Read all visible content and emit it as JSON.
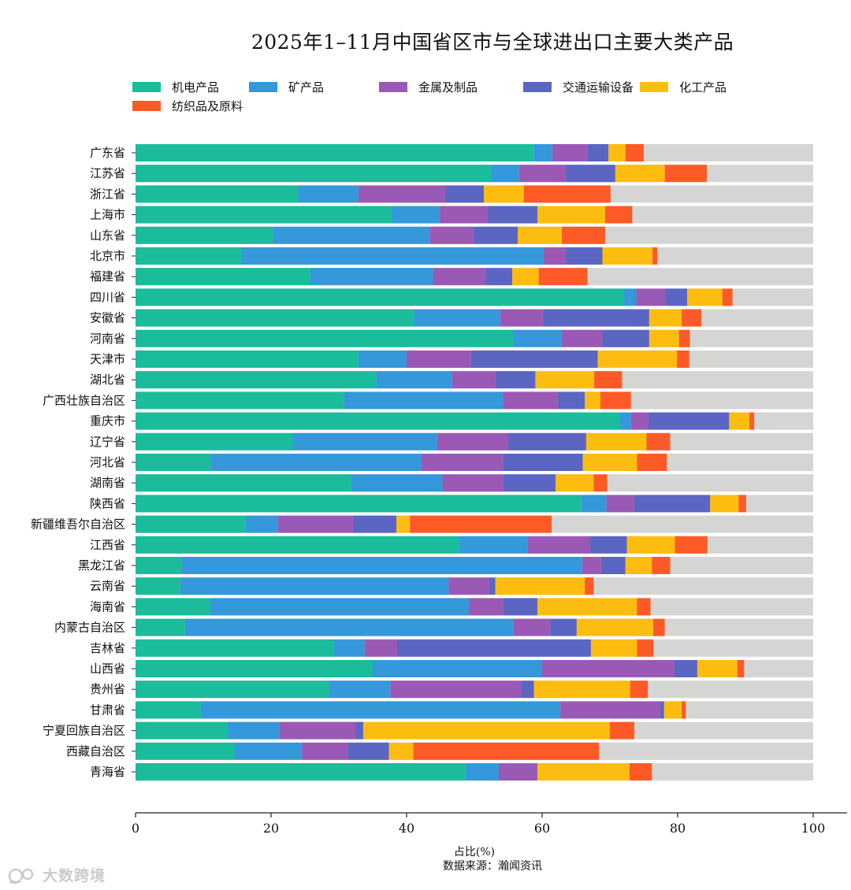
{
  "chart_data": {
    "type": "bar",
    "orientation": "horizontal",
    "stacked": true,
    "title": "2025年1–11月中国省区市与全球进出口主要大类产品",
    "xlabel": "占比(%)",
    "source": "数据来源：瀚闻资讯",
    "xlim": [
      0,
      100
    ],
    "xticks": [
      0,
      20,
      40,
      60,
      80,
      100
    ],
    "legend_position": "top",
    "other_color": "#d5d5d3",
    "categories": [
      "广东省",
      "江苏省",
      "浙江省",
      "上海市",
      "山东省",
      "北京市",
      "福建省",
      "四川省",
      "安徽省",
      "河南省",
      "天津市",
      "湖北省",
      "广西壮族自治区",
      "重庆市",
      "辽宁省",
      "河北省",
      "湖南省",
      "陕西省",
      "新疆维吾尔自治区",
      "江西省",
      "黑龙江省",
      "云南省",
      "海南省",
      "内蒙古自治区",
      "吉林省",
      "山西省",
      "贵州省",
      "甘肃省",
      "宁夏回族自治区",
      "西藏自治区",
      "青海省"
    ],
    "series": [
      {
        "name": "机电产品",
        "color": "#1abc9c",
        "values": [
          58.8,
          52.5,
          24.0,
          37.8,
          20.3,
          15.6,
          25.8,
          72.1,
          41.1,
          55.7,
          32.9,
          35.5,
          30.8,
          71.5,
          23.2,
          11.1,
          31.8,
          65.8,
          16.2,
          47.7,
          6.8,
          6.6,
          11.0,
          7.3,
          29.2,
          35.0,
          28.6,
          9.6,
          13.6,
          14.6,
          48.7
        ]
      },
      {
        "name": "矿产品",
        "color": "#3498db",
        "values": [
          2.7,
          4.1,
          8.9,
          7.1,
          23.1,
          44.6,
          18.1,
          1.8,
          12.7,
          7.2,
          7.1,
          11.2,
          23.4,
          1.6,
          21.3,
          31.1,
          13.5,
          3.7,
          4.8,
          10.2,
          59.1,
          39.6,
          38.2,
          48.5,
          4.6,
          25.0,
          9.0,
          53.1,
          7.6,
          9.9,
          4.9
        ]
      },
      {
        "name": "金属及制品",
        "color": "#9b59b6",
        "values": [
          5.2,
          6.9,
          12.8,
          7.0,
          6.5,
          3.3,
          7.7,
          4.3,
          6.3,
          6.0,
          9.5,
          6.4,
          8.1,
          2.6,
          10.5,
          12.0,
          9.0,
          4.1,
          11.1,
          9.2,
          2.8,
          6.0,
          5.1,
          5.4,
          4.8,
          19.5,
          19.3,
          14.7,
          11.3,
          6.8,
          5.7
        ]
      },
      {
        "name": "交通运输设备",
        "color": "#5b66c2",
        "values": [
          3.1,
          7.3,
          5.7,
          7.4,
          6.5,
          5.4,
          4.0,
          3.2,
          15.7,
          6.9,
          18.7,
          5.9,
          4.0,
          11.9,
          11.5,
          11.8,
          7.7,
          11.2,
          6.4,
          5.4,
          3.6,
          0.9,
          5.0,
          3.9,
          28.6,
          3.4,
          1.9,
          0.6,
          1.1,
          6.1,
          0.0
        ]
      },
      {
        "name": "化工产品",
        "color": "#fdbd10",
        "values": [
          2.5,
          7.3,
          5.9,
          10.0,
          6.5,
          7.4,
          3.9,
          5.2,
          4.8,
          4.4,
          11.7,
          8.7,
          2.3,
          3.0,
          8.9,
          8.0,
          5.6,
          4.2,
          2.0,
          7.1,
          3.9,
          13.2,
          14.7,
          11.3,
          6.8,
          5.9,
          14.2,
          2.6,
          36.4,
          3.6,
          13.6
        ]
      },
      {
        "name": "纺织品及原料",
        "color": "#fd5a28",
        "values": [
          2.7,
          6.2,
          12.8,
          4.0,
          6.4,
          0.7,
          7.2,
          1.5,
          2.9,
          1.6,
          1.8,
          4.1,
          4.5,
          0.7,
          3.5,
          4.4,
          2.0,
          1.1,
          20.9,
          4.8,
          2.7,
          1.3,
          2.0,
          1.7,
          2.4,
          1.0,
          2.6,
          0.6,
          3.6,
          27.4,
          3.3
        ]
      }
    ]
  },
  "watermark": {
    "text": "大数跨境"
  }
}
